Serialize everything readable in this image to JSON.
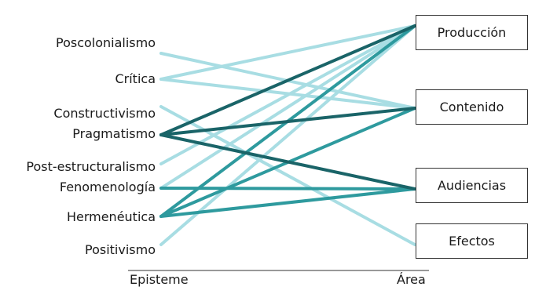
{
  "colors": {
    "light": "#a8dde3",
    "mid": "#2e9a9e",
    "dark": "#1a6468",
    "axis": "#333333"
  },
  "epistemes": [
    {
      "id": "poscolonialismo",
      "label": "Poscolonialismo"
    },
    {
      "id": "critica",
      "label": "Crítica"
    },
    {
      "id": "constructivismo",
      "label": "Constructivismo"
    },
    {
      "id": "pragmatismo",
      "label": "Pragmatismo"
    },
    {
      "id": "post_estructuralismo",
      "label": "Post-estructuralismo"
    },
    {
      "id": "fenomenologia",
      "label": "Fenomenología"
    },
    {
      "id": "hermeneutica",
      "label": "Hermenéutica"
    },
    {
      "id": "positivismo",
      "label": "Positivismo"
    }
  ],
  "areas": [
    {
      "id": "produccion",
      "label": "Producción"
    },
    {
      "id": "contenido",
      "label": "Contenido"
    },
    {
      "id": "audiencias",
      "label": "Audiencias"
    },
    {
      "id": "efectos",
      "label": "Efectos"
    }
  ],
  "axis": {
    "left_label": "Episteme",
    "right_label": "Área"
  },
  "links": [
    {
      "from": "poscolonialismo",
      "to": "contenido",
      "tone": "light"
    },
    {
      "from": "critica",
      "to": "produccion",
      "tone": "light"
    },
    {
      "from": "critica",
      "to": "contenido",
      "tone": "light"
    },
    {
      "from": "constructivismo",
      "to": "efectos",
      "tone": "light"
    },
    {
      "from": "pragmatismo",
      "to": "produccion",
      "tone": "dark"
    },
    {
      "from": "pragmatismo",
      "to": "contenido",
      "tone": "dark"
    },
    {
      "from": "pragmatismo",
      "to": "audiencias",
      "tone": "dark"
    },
    {
      "from": "post_estructuralismo",
      "to": "produccion",
      "tone": "light"
    },
    {
      "from": "fenomenologia",
      "to": "audiencias",
      "tone": "mid"
    },
    {
      "from": "fenomenologia",
      "to": "produccion",
      "tone": "light"
    },
    {
      "from": "hermeneutica",
      "to": "produccion",
      "tone": "mid"
    },
    {
      "from": "hermeneutica",
      "to": "contenido",
      "tone": "mid"
    },
    {
      "from": "hermeneutica",
      "to": "audiencias",
      "tone": "mid"
    },
    {
      "from": "positivismo",
      "to": "produccion",
      "tone": "light"
    }
  ]
}
